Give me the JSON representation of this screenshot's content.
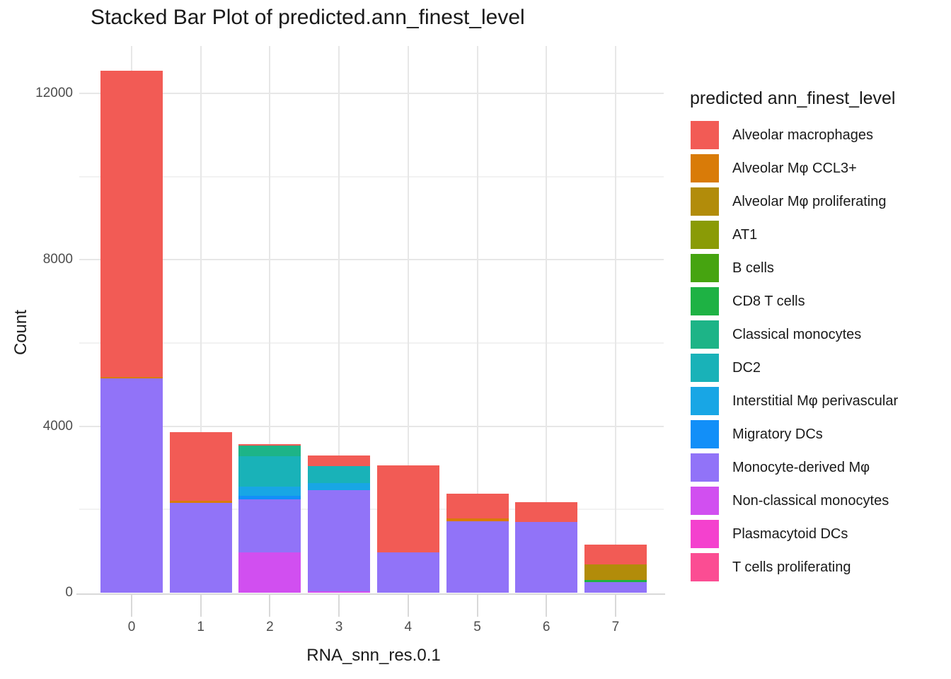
{
  "chart_data": {
    "type": "bar",
    "stacked": true,
    "title": "Stacked Bar Plot of predicted.ann_finest_level",
    "xlabel": "RNA_snn_res.0.1",
    "ylabel": "Count",
    "legend_title": "predicted ann_finest_level",
    "legend_position": "right",
    "grid": true,
    "x_categories": [
      "0",
      "1",
      "2",
      "3",
      "4",
      "5",
      "6",
      "7"
    ],
    "y_ticks": [
      0,
      4000,
      8000,
      12000
    ],
    "y_minor_ticks": [
      2000,
      6000,
      10000
    ],
    "ylim": [
      0,
      12700
    ],
    "categories": [
      {
        "name": "Alveolar macrophages",
        "color": "#F25B55"
      },
      {
        "name": "Alveolar Mφ CCL3+",
        "color": "#D97B08"
      },
      {
        "name": "Alveolar Mφ proliferating",
        "color": "#B28C0A"
      },
      {
        "name": "AT1",
        "color": "#8A9B06"
      },
      {
        "name": "B cells",
        "color": "#46A410"
      },
      {
        "name": "CD8 T cells",
        "color": "#1EB244"
      },
      {
        "name": "Classical monocytes",
        "color": "#1DB487"
      },
      {
        "name": "DC2",
        "color": "#19B2B8"
      },
      {
        "name": "Interstitial Mφ perivascular",
        "color": "#18A6E5"
      },
      {
        "name": "Migratory DCs",
        "color": "#128FF8"
      },
      {
        "name": "Monocyte-derived Mφ",
        "color": "#9173F8"
      },
      {
        "name": "Non-classical monocytes",
        "color": "#D14FF0"
      },
      {
        "name": "Plasmacytoid DCs",
        "color": "#F441CE"
      },
      {
        "name": "T cells proliferating",
        "color": "#FB4D93"
      }
    ],
    "bars": [
      {
        "x": "0",
        "total": 12550,
        "segments": [
          {
            "name": "Monocyte-derived Mφ",
            "value": 5150
          },
          {
            "name": "Alveolar Mφ CCL3+",
            "value": 40
          },
          {
            "name": "Alveolar macrophages",
            "value": 7360
          }
        ]
      },
      {
        "x": "1",
        "total": 3860,
        "segments": [
          {
            "name": "Monocyte-derived Mφ",
            "value": 2160
          },
          {
            "name": "Alveolar Mφ CCL3+",
            "value": 50
          },
          {
            "name": "Alveolar macrophages",
            "value": 1650
          }
        ]
      },
      {
        "x": "2",
        "total": 3570,
        "segments": [
          {
            "name": "Non-classical monocytes",
            "value": 970
          },
          {
            "name": "Monocyte-derived Mφ",
            "value": 1270
          },
          {
            "name": "Migratory DCs",
            "value": 90
          },
          {
            "name": "Interstitial Mφ perivascular",
            "value": 220
          },
          {
            "name": "DC2",
            "value": 730
          },
          {
            "name": "Classical monocytes",
            "value": 250
          },
          {
            "name": "Alveolar macrophages",
            "value": 40
          }
        ]
      },
      {
        "x": "3",
        "total": 3300,
        "segments": [
          {
            "name": "Non-classical monocytes",
            "value": 35
          },
          {
            "name": "Monocyte-derived Mφ",
            "value": 2430
          },
          {
            "name": "Interstitial Mφ perivascular",
            "value": 170
          },
          {
            "name": "DC2",
            "value": 410
          },
          {
            "name": "Alveolar macrophages",
            "value": 255
          }
        ]
      },
      {
        "x": "4",
        "total": 3060,
        "segments": [
          {
            "name": "Monocyte-derived Mφ",
            "value": 970
          },
          {
            "name": "Alveolar macrophages",
            "value": 2090
          }
        ]
      },
      {
        "x": "5",
        "total": 2380,
        "segments": [
          {
            "name": "Monocyte-derived Mφ",
            "value": 1715
          },
          {
            "name": "Alveolar Mφ CCL3+",
            "value": 65
          },
          {
            "name": "Alveolar macrophages",
            "value": 600
          }
        ]
      },
      {
        "x": "6",
        "total": 2175,
        "segments": [
          {
            "name": "Monocyte-derived Mφ",
            "value": 1700
          },
          {
            "name": "Alveolar macrophages",
            "value": 475
          }
        ]
      },
      {
        "x": "7",
        "total": 1155,
        "segments": [
          {
            "name": "Monocyte-derived Mφ",
            "value": 255
          },
          {
            "name": "CD8 T cells",
            "value": 50
          },
          {
            "name": "Alveolar Mφ proliferating",
            "value": 375
          },
          {
            "name": "Alveolar macrophages",
            "value": 475
          }
        ]
      }
    ]
  }
}
